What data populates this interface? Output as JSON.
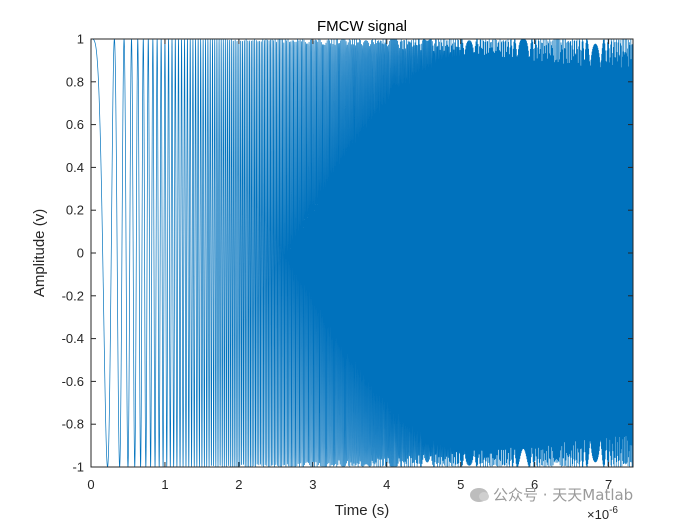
{
  "chart_data": {
    "type": "line",
    "title": "FMCW signal",
    "xlabel": "Time (s)",
    "ylabel": "Amplitude (v)",
    "x_exponent_label": "×10",
    "x_exponent": "-6",
    "xlim": [
      0,
      7.33
    ],
    "ylim": [
      -1,
      1
    ],
    "x_ticks": [
      0,
      1,
      2,
      3,
      4,
      5,
      6,
      7
    ],
    "x_tick_labels": [
      "0",
      "1",
      "2",
      "3",
      "4",
      "5",
      "6",
      "7"
    ],
    "y_ticks": [
      -1,
      -0.8,
      -0.6,
      -0.4,
      -0.2,
      0,
      0.2,
      0.4,
      0.6,
      0.8,
      1
    ],
    "y_tick_labels": [
      "-1",
      "-0.8",
      "-0.6",
      "-0.4",
      "-0.2",
      "0",
      "0.2",
      "0.4",
      "0.6",
      "0.8",
      "1"
    ],
    "grid": false,
    "series": [
      {
        "color": "#0072BD",
        "function": "cos(2*pi*(f0*t + (B/(2*T))*t^2))",
        "x_start": 0,
        "x_end": 7.33,
        "T": 7.33,
        "B_over_T": 20,
        "f0": 0,
        "points": 6000
      }
    ]
  },
  "watermark": {
    "text": "公众号 · 天天Matlab",
    "icon": "wechat-icon"
  }
}
